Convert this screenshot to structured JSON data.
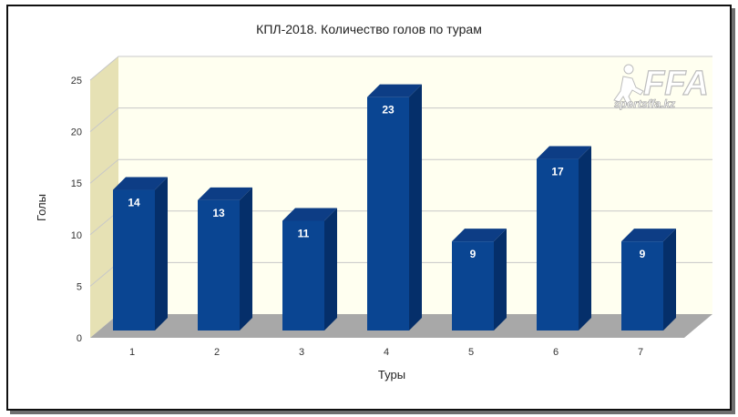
{
  "chart_data": {
    "type": "bar",
    "title": "КПЛ-2018. Количество голов по турам",
    "xlabel": "Туры",
    "ylabel": "Голы",
    "categories": [
      "1",
      "2",
      "3",
      "4",
      "5",
      "6",
      "7"
    ],
    "values": [
      14,
      13,
      11,
      23,
      9,
      17,
      9
    ],
    "ylim": [
      0,
      25
    ],
    "yticks": [
      0,
      5,
      10,
      15,
      20,
      25
    ],
    "grid": true,
    "three_d": true,
    "colors": {
      "bar_front": "#0a4592",
      "bar_top": "#0d3d85",
      "bar_side": "#052f6a",
      "back_wall": "#fffff0",
      "side_wall": "#e6e1b4",
      "floor": "#a8a8a8",
      "grid": "#c8c8c8"
    }
  },
  "watermark": {
    "logo_text": "FFA",
    "site_text": "sportsffa.kz"
  }
}
